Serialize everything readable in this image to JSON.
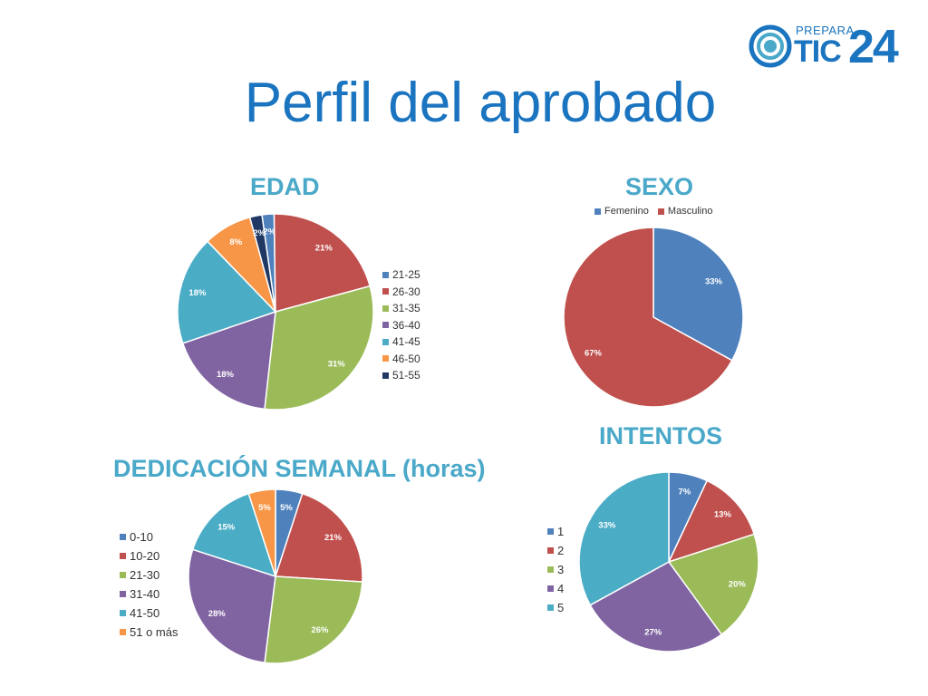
{
  "slide": {
    "title": "Perfil del aprobado",
    "logo": {
      "top_text": "PREPARA",
      "main_text": "TIC",
      "number_text": "24",
      "color": "#1a74bf"
    }
  },
  "chart_data": [
    {
      "id": "edad",
      "type": "pie",
      "title": "EDAD",
      "legend_position": "right",
      "start_angle_deg": -8,
      "categories": [
        "21-25",
        "26-30",
        "31-35",
        "36-40",
        "41-45",
        "46-50",
        "51-55"
      ],
      "values": [
        2,
        21,
        31,
        18,
        18,
        8,
        2
      ],
      "labels": [
        "2%",
        "21%",
        "31%",
        "18%",
        "18%",
        "8%",
        "2%"
      ],
      "colors": [
        "#4f81bd",
        "#c0504d",
        "#9bbb59",
        "#8064a2",
        "#4bacc6",
        "#f79646",
        "#1f3864"
      ]
    },
    {
      "id": "sexo",
      "type": "pie",
      "title": "SEXO",
      "legend_position": "top",
      "start_angle_deg": 0,
      "categories": [
        "Femenino",
        "Masculino"
      ],
      "values": [
        33,
        67
      ],
      "labels": [
        "33%",
        "67%"
      ],
      "colors": [
        "#4f81bd",
        "#c0504d"
      ]
    },
    {
      "id": "dedicacion",
      "type": "pie",
      "title": "DEDICACIÓN SEMANAL (horas)",
      "legend_position": "left",
      "start_angle_deg": 0,
      "categories": [
        "0-10",
        "10-20",
        "21-30",
        "31-40",
        "41-50",
        "51 o más"
      ],
      "values": [
        5,
        21,
        26,
        28,
        15,
        5
      ],
      "labels": [
        "5%",
        "21%",
        "26%",
        "28%",
        "15%",
        "5%"
      ],
      "colors": [
        "#4f81bd",
        "#c0504d",
        "#9bbb59",
        "#8064a2",
        "#4bacc6",
        "#f79646"
      ]
    },
    {
      "id": "intentos",
      "type": "pie",
      "title": "INTENTOS",
      "legend_position": "left",
      "start_angle_deg": 0,
      "categories": [
        "1",
        "2",
        "3",
        "4",
        "5"
      ],
      "values": [
        7,
        13,
        20,
        27,
        33
      ],
      "labels": [
        "7%",
        "13%",
        "20%",
        "27%",
        "33%"
      ],
      "colors": [
        "#4f81bd",
        "#c0504d",
        "#9bbb59",
        "#8064a2",
        "#4bacc6"
      ]
    }
  ]
}
